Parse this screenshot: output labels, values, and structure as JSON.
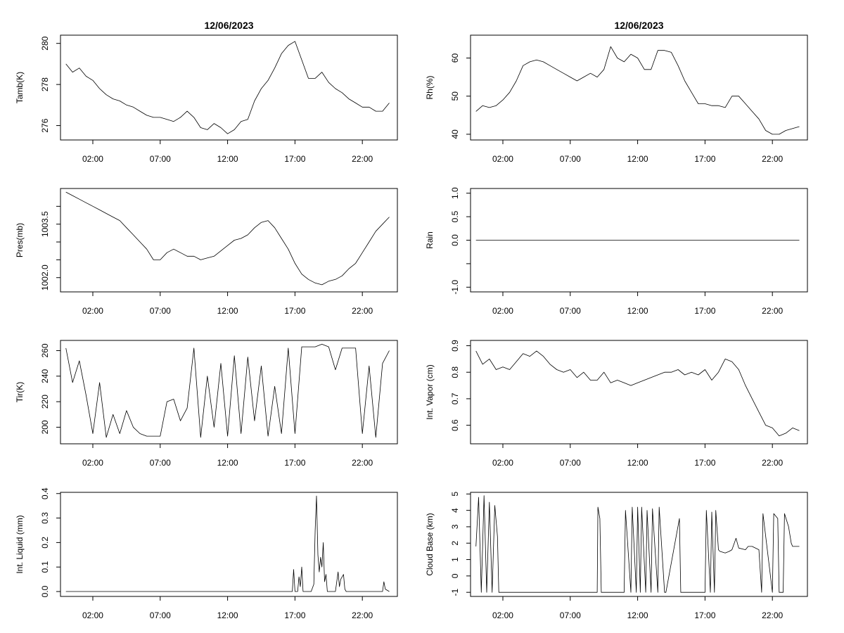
{
  "colors": {
    "line": "#000000",
    "frame": "#000000",
    "background": "#ffffff"
  },
  "x_ticks": [
    "02:00",
    "07:00",
    "12:00",
    "17:00",
    "22:00"
  ],
  "chart_data": [
    {
      "type": "line",
      "title": "12/06/2023",
      "xlabel": "",
      "ylabel": "Tamb(K)",
      "x_unit": "hours",
      "xlim": [
        -0.4,
        24.6
      ],
      "ylim": [
        275.3,
        280.4
      ],
      "yticks": [
        276,
        278,
        280
      ],
      "ytick_labels": [
        "276",
        "278",
        "280"
      ],
      "grid": false,
      "series": [
        {
          "x": [
            0,
            0.5,
            1,
            1.5,
            2,
            2.5,
            3,
            3.5,
            4,
            4.5,
            5,
            5.5,
            6,
            6.5,
            7,
            7.5,
            8,
            8.5,
            9,
            9.5,
            10,
            10.5,
            11,
            11.5,
            12,
            12.5,
            13,
            13.5,
            14,
            14.5,
            15,
            15.5,
            16,
            16.5,
            17,
            17.5,
            18,
            18.5,
            19,
            19.5,
            20,
            20.5,
            21,
            21.5,
            22,
            22.5,
            23,
            23.5,
            24
          ],
          "values": [
            279,
            278.6,
            278.8,
            278.4,
            278.2,
            277.8,
            277.5,
            277.3,
            277.2,
            277,
            276.9,
            276.7,
            276.5,
            276.4,
            276.4,
            276.3,
            276.2,
            276.4,
            276.7,
            276.4,
            275.9,
            275.8,
            276.1,
            275.9,
            275.6,
            275.8,
            276.2,
            276.3,
            277.2,
            277.8,
            278.2,
            278.8,
            279.5,
            279.9,
            280.1,
            279.2,
            278.3,
            278.3,
            278.6,
            278.1,
            277.8,
            277.6,
            277.3,
            277.1,
            276.9,
            276.9,
            276.7,
            276.7,
            277.1
          ]
        }
      ]
    },
    {
      "type": "line",
      "title": "12/06/2023",
      "xlabel": "",
      "ylabel": "Rh(%)",
      "x_unit": "hours",
      "xlim": [
        -0.4,
        24.6
      ],
      "ylim": [
        38.5,
        66
      ],
      "yticks": [
        40,
        50,
        60
      ],
      "ytick_labels": [
        "40",
        "50",
        "60"
      ],
      "grid": false,
      "series": [
        {
          "x": [
            0,
            0.5,
            1,
            1.5,
            2,
            2.5,
            3,
            3.5,
            4,
            4.5,
            5,
            5.5,
            6,
            6.5,
            7,
            7.5,
            8,
            8.5,
            9,
            9.5,
            10,
            10.5,
            11,
            11.5,
            12,
            12.5,
            13,
            13.5,
            14,
            14.5,
            15,
            15.5,
            16,
            16.5,
            17,
            17.5,
            18,
            18.5,
            19,
            19.5,
            20,
            20.5,
            21,
            21.5,
            22,
            22.5,
            23,
            23.5,
            24
          ],
          "values": [
            46,
            47.5,
            47,
            47.5,
            49,
            51,
            54,
            58,
            59,
            59.5,
            59,
            58,
            57,
            56,
            55,
            54,
            55,
            56,
            55,
            57,
            63,
            60,
            59,
            61,
            60,
            57,
            57,
            62,
            62,
            61.5,
            58,
            54,
            51,
            48,
            48,
            47.5,
            47.5,
            47,
            50,
            50,
            48,
            46,
            44,
            41,
            40,
            40,
            41,
            41.5,
            42
          ]
        }
      ]
    },
    {
      "type": "line",
      "title": "",
      "xlabel": "",
      "ylabel": "Pres(mb)",
      "x_unit": "hours",
      "xlim": [
        -0.4,
        24.6
      ],
      "ylim": [
        1001.6,
        1004.5
      ],
      "yticks": [
        1002.0,
        1003.5
      ],
      "ytick_labels": [
        "1002.0",
        "1003.5"
      ],
      "minor_yticks": [
        1002.5,
        1003.0,
        1004.0
      ],
      "grid": false,
      "series": [
        {
          "x": [
            0,
            0.5,
            1,
            1.5,
            2,
            2.5,
            3,
            3.5,
            4,
            4.5,
            5,
            5.5,
            6,
            6.5,
            7,
            7.5,
            8,
            8.5,
            9,
            9.5,
            10,
            10.5,
            11,
            11.5,
            12,
            12.5,
            13,
            13.5,
            14,
            14.5,
            15,
            15.5,
            16,
            16.5,
            17,
            17.5,
            18,
            18.5,
            19,
            19.5,
            20,
            20.5,
            21,
            21.5,
            22,
            22.5,
            23,
            23.5,
            24
          ],
          "values": [
            1004.4,
            1004.3,
            1004.2,
            1004.1,
            1004,
            1003.9,
            1003.8,
            1003.7,
            1003.6,
            1003.4,
            1003.2,
            1003,
            1002.8,
            1002.5,
            1002.5,
            1002.7,
            1002.8,
            1002.7,
            1002.6,
            1002.6,
            1002.5,
            1002.55,
            1002.6,
            1002.75,
            1002.9,
            1003.05,
            1003.1,
            1003.2,
            1003.4,
            1003.55,
            1003.6,
            1003.4,
            1003.1,
            1002.8,
            1002.4,
            1002.1,
            1001.95,
            1001.85,
            1001.8,
            1001.9,
            1001.95,
            1002.05,
            1002.25,
            1002.4,
            1002.7,
            1003,
            1003.3,
            1003.5,
            1003.7
          ]
        }
      ]
    },
    {
      "type": "line",
      "title": "",
      "xlabel": "",
      "ylabel": "Rain",
      "x_unit": "hours",
      "xlim": [
        -0.4,
        24.6
      ],
      "ylim": [
        -1.1,
        1.1
      ],
      "yticks": [
        -1.0,
        -0.5,
        0.0,
        0.5,
        1.0
      ],
      "ytick_labels": [
        "-1.0",
        "",
        "0.0",
        "0.5",
        "1.0"
      ],
      "grid": false,
      "series": [
        {
          "x": [
            0,
            24
          ],
          "values": [
            0,
            0
          ]
        }
      ]
    },
    {
      "type": "line",
      "title": "",
      "xlabel": "",
      "ylabel": "Tir(K)",
      "x_unit": "hours",
      "xlim": [
        -0.4,
        24.6
      ],
      "ylim": [
        187,
        268
      ],
      "yticks": [
        200,
        220,
        240,
        260
      ],
      "ytick_labels": [
        "200",
        "220",
        "240",
        "260"
      ],
      "grid": false,
      "series": [
        {
          "x": [
            0,
            0.5,
            1,
            1.5,
            2,
            2.5,
            3,
            3.5,
            4,
            4.5,
            5,
            5.5,
            6,
            6.5,
            7,
            7.5,
            8,
            8.5,
            9,
            9.5,
            10,
            10.5,
            11,
            11.5,
            12,
            12.5,
            13,
            13.5,
            14,
            14.5,
            15,
            15.5,
            16,
            16.5,
            17,
            17.5,
            18,
            18.5,
            19,
            19.5,
            20,
            20.5,
            21,
            21.5,
            22,
            22.5,
            23,
            23.5,
            24
          ],
          "values": [
            262,
            235,
            252,
            225,
            195,
            235,
            192,
            210,
            195,
            213,
            200,
            195,
            193,
            193,
            193,
            220,
            222,
            205,
            215,
            262,
            192,
            240,
            200,
            250,
            193,
            256,
            195,
            255,
            205,
            248,
            193,
            232,
            195,
            262,
            195,
            263,
            263,
            263,
            265,
            263,
            245,
            262,
            262,
            262,
            195,
            248,
            192,
            250,
            260
          ]
        }
      ]
    },
    {
      "type": "line",
      "title": "",
      "xlabel": "",
      "ylabel": "Int. Vapor (cm)",
      "x_unit": "hours",
      "xlim": [
        -0.4,
        24.6
      ],
      "ylim": [
        0.53,
        0.92
      ],
      "yticks": [
        0.6,
        0.7,
        0.8,
        0.9
      ],
      "ytick_labels": [
        "0.6",
        "0.7",
        "0.8",
        "0.9"
      ],
      "grid": false,
      "series": [
        {
          "x": [
            0,
            0.5,
            1,
            1.5,
            2,
            2.5,
            3,
            3.5,
            4,
            4.5,
            5,
            5.5,
            6,
            6.5,
            7,
            7.5,
            8,
            8.5,
            9,
            9.5,
            10,
            10.5,
            11,
            11.5,
            12,
            12.5,
            13,
            13.5,
            14,
            14.5,
            15,
            15.5,
            16,
            16.5,
            17,
            17.5,
            18,
            18.5,
            19,
            19.5,
            20,
            20.5,
            21,
            21.5,
            22,
            22.5,
            23,
            23.5,
            24
          ],
          "values": [
            0.88,
            0.83,
            0.85,
            0.81,
            0.82,
            0.81,
            0.84,
            0.87,
            0.86,
            0.88,
            0.86,
            0.83,
            0.81,
            0.8,
            0.81,
            0.78,
            0.8,
            0.77,
            0.77,
            0.8,
            0.76,
            0.77,
            0.76,
            0.75,
            0.76,
            0.77,
            0.78,
            0.79,
            0.8,
            0.8,
            0.81,
            0.79,
            0.8,
            0.79,
            0.81,
            0.77,
            0.8,
            0.85,
            0.84,
            0.81,
            0.75,
            0.7,
            0.65,
            0.6,
            0.59,
            0.56,
            0.57,
            0.59,
            0.58
          ]
        }
      ]
    },
    {
      "type": "line",
      "title": "",
      "xlabel": "",
      "ylabel": "Int. Liquid (mm)",
      "x_unit": "hours",
      "xlim": [
        -0.4,
        24.6
      ],
      "ylim": [
        -0.02,
        0.405
      ],
      "yticks": [
        0.0,
        0.1,
        0.2,
        0.3,
        0.4
      ],
      "ytick_labels": [
        "0.0",
        "0.1",
        "0.2",
        "0.3",
        "0.4"
      ],
      "grid": false,
      "series": [
        {
          "x": [
            0,
            16.8,
            16.9,
            17,
            17.2,
            17.3,
            17.4,
            17.5,
            17.6,
            17.8,
            18,
            18.2,
            18.4,
            18.5,
            18.6,
            18.7,
            18.8,
            18.9,
            19,
            19.1,
            19.2,
            19.3,
            19.4,
            19.6,
            19.8,
            20,
            20.2,
            20.3,
            20.4,
            20.6,
            20.7,
            20.8,
            21,
            21.2,
            23.5,
            23.6,
            23.7,
            24
          ],
          "values": [
            0,
            0,
            0.09,
            0,
            0,
            0.06,
            0.02,
            0.1,
            0,
            0,
            0,
            0,
            0.03,
            0.25,
            0.39,
            0.15,
            0.08,
            0.14,
            0.1,
            0.2,
            0.04,
            0.07,
            0,
            0,
            0,
            0,
            0.08,
            0.02,
            0.05,
            0.07,
            0.01,
            0,
            0,
            0,
            0,
            0.04,
            0.01,
            0
          ]
        }
      ]
    },
    {
      "type": "line",
      "title": "",
      "xlabel": "",
      "ylabel": "Cloud Base (km)",
      "x_unit": "hours",
      "xlim": [
        -0.4,
        24.6
      ],
      "ylim": [
        -1.25,
        5.1
      ],
      "yticks": [
        -1,
        0,
        1,
        2,
        3,
        4,
        5
      ],
      "ytick_labels": [
        "-1",
        "0",
        "1",
        "2",
        "3",
        "4",
        "5"
      ],
      "grid": false,
      "series": [
        {
          "x": [
            0,
            0.2,
            0.4,
            0.6,
            0.8,
            1,
            1.2,
            1.4,
            1.6,
            1.7,
            9,
            9.05,
            9.2,
            9.3,
            11,
            11.1,
            11.5,
            11.6,
            11.9,
            12,
            12.2,
            12.3,
            12.6,
            12.7,
            13,
            13.1,
            13.5,
            13.6,
            14,
            14.1,
            15.1,
            15.2,
            17,
            17.1,
            17.4,
            17.5,
            17.7,
            17.8,
            18,
            18.1,
            18.5,
            18.8,
            19,
            19.3,
            19.5,
            20,
            20.2,
            20.5,
            21,
            21.2,
            21.3,
            22,
            22.1,
            22.4,
            22.5,
            22.8,
            22.9,
            23.2,
            23.4,
            23.5,
            23.6,
            23.8,
            24
          ],
          "values": [
            1.8,
            4.8,
            -1,
            4.9,
            -1,
            4.5,
            -1,
            4.3,
            2.4,
            -1,
            -1,
            4.2,
            3.5,
            -1,
            -1,
            4,
            -1,
            4.2,
            -1,
            4.2,
            -1,
            4.2,
            -1,
            4,
            -1,
            4.1,
            -1,
            4.2,
            -1,
            -1,
            3.5,
            -1,
            -1,
            4,
            -1,
            3.9,
            -1,
            4,
            1.6,
            1.5,
            1.4,
            1.5,
            1.6,
            2.3,
            1.7,
            1.6,
            1.8,
            1.8,
            1.6,
            -1,
            3.8,
            -1,
            3.8,
            3.5,
            -1,
            -1,
            3.8,
            3,
            2,
            1.8,
            1.8,
            1.8,
            1.8
          ]
        }
      ]
    }
  ]
}
